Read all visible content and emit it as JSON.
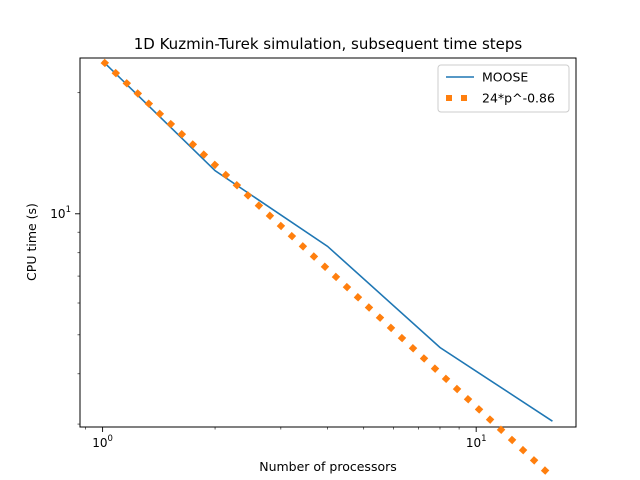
{
  "chart_data": {
    "type": "line",
    "title": "1D Kuzmin-Turek simulation, subsequent time steps",
    "xlabel": "Number of processors",
    "ylabel": "CPU time (s)",
    "xscale": "log",
    "yscale": "log",
    "xlim": [
      0.87,
      18.5
    ],
    "ylim": [
      2.95,
      24.4
    ],
    "xticks": [
      {
        "value": 1,
        "base": "10",
        "exp": "0"
      },
      {
        "value": 10,
        "base": "10",
        "exp": "1"
      }
    ],
    "yticks": [
      {
        "value": 10,
        "base": "10",
        "exp": "1"
      }
    ],
    "grid": false,
    "legend_position": "top-right",
    "series": [
      {
        "name": "MOOSE",
        "color": "#1f77b4",
        "style": "solid",
        "x": [
          1,
          2,
          4,
          8,
          16
        ],
        "y": [
          24.0,
          12.8,
          8.3,
          4.65,
          3.05
        ]
      },
      {
        "name": "24*p^-0.86",
        "color": "#ff7f0e",
        "style": "dotted",
        "formula": {
          "a": 24,
          "b": -0.86
        },
        "x": [
          1,
          16
        ],
        "y": [
          24.0,
          2.22
        ]
      }
    ]
  }
}
